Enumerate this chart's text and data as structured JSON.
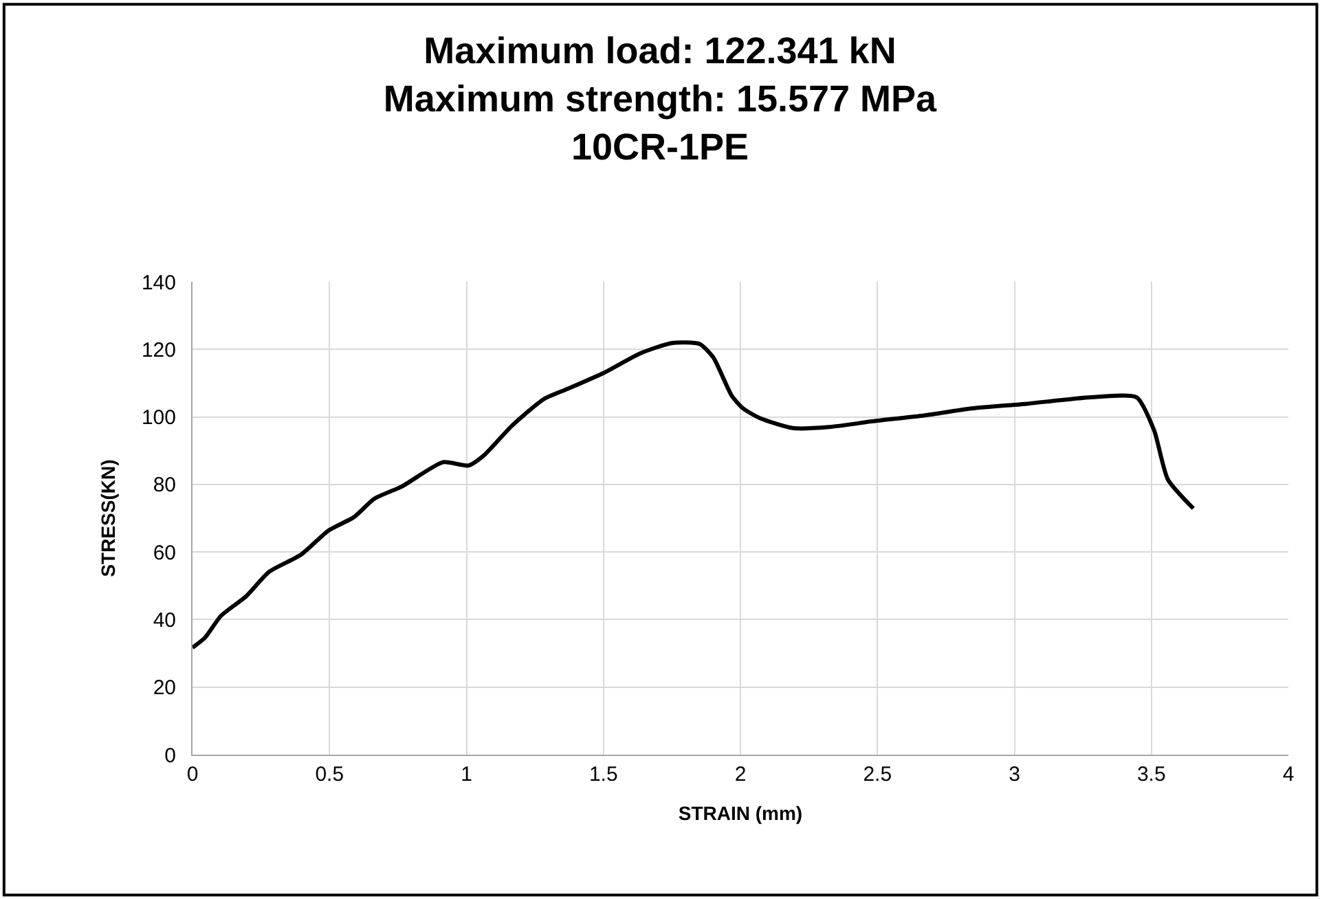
{
  "chart_data": {
    "type": "line",
    "title": "Maximum load: 122.341 kN\nMaximum strength: 15.577 MPa\n10CR-1PE",
    "xlabel": "STRAIN (mm)",
    "ylabel": "STRESS(KN)",
    "series": [
      {
        "color": "#000000",
        "x": [
          0,
          0.045,
          0.104,
          0.196,
          0.279,
          0.396,
          0.497,
          0.589,
          0.664,
          0.764,
          0.915,
          1.007,
          1.065,
          1.166,
          1.283,
          1.366,
          1.5,
          1.634,
          1.751,
          1.851,
          1.901,
          1.968,
          2.01,
          2.072,
          2.19,
          2.324,
          2.492,
          2.659,
          2.844,
          3.045,
          3.28,
          3.446,
          3.51,
          3.56,
          3.653
        ],
        "values": [
          31.7,
          34.6,
          41.1,
          46.9,
          54.1,
          59.2,
          66.4,
          70.3,
          75.8,
          79.4,
          86.6,
          85.6,
          88.7,
          97.4,
          105.3,
          108.2,
          113,
          118.8,
          121.9,
          121.6,
          117.6,
          106.3,
          102.5,
          99.6,
          96.7,
          97,
          98.8,
          100.3,
          102.5,
          103.9,
          105.8,
          105.8,
          96,
          81.5,
          72.9
        ]
      }
    ],
    "xlim": [
      0,
      4
    ],
    "xticks": [
      0,
      0.5,
      1,
      1.5,
      2,
      2.5,
      3,
      3.5,
      4
    ],
    "ylim": [
      0,
      140
    ],
    "yticks": [
      0,
      20,
      40,
      60,
      80,
      100,
      120,
      140
    ],
    "grid": true,
    "marker": "none",
    "line_style": "solid"
  }
}
